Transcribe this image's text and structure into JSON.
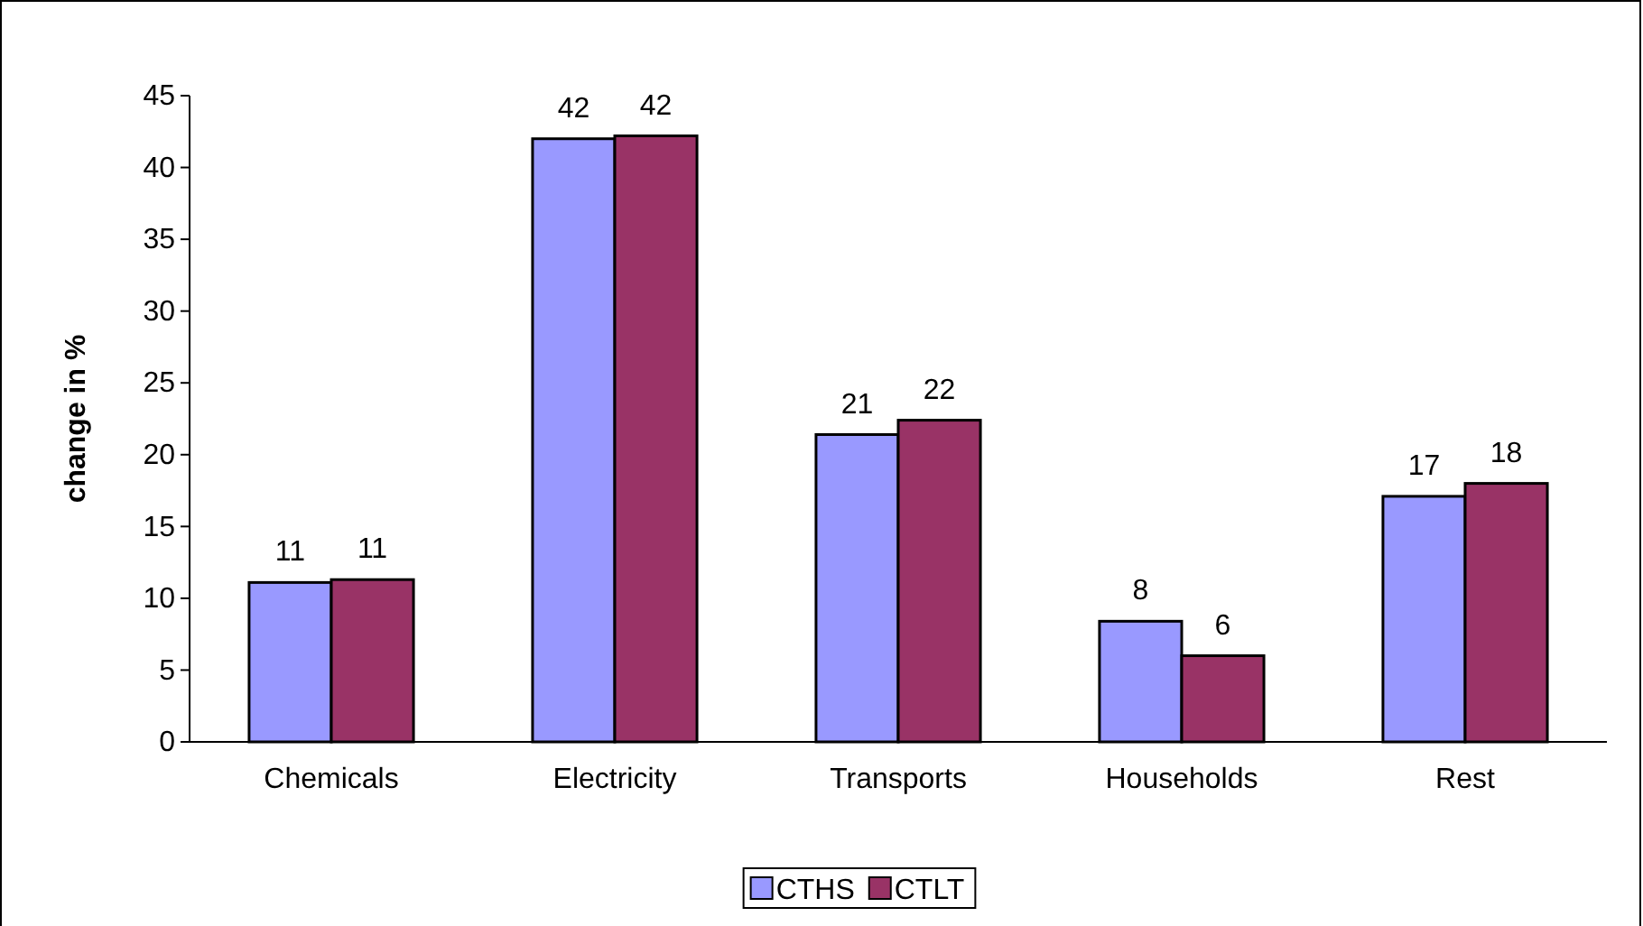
{
  "chart_data": {
    "type": "bar",
    "ylabel": "change in %",
    "categories": [
      "Chemicals",
      "Electricity",
      "Transports",
      "Households",
      "Rest"
    ],
    "series": [
      {
        "name": "CTHS",
        "color": "#9999ff",
        "values": [
          11.1,
          42.0,
          21.4,
          8.4,
          17.1
        ],
        "value_labels": [
          "11",
          "42",
          "21",
          "8",
          "17"
        ]
      },
      {
        "name": "CTLT",
        "color": "#993366",
        "values": [
          11.3,
          42.2,
          22.4,
          6.0,
          18.0
        ],
        "value_labels": [
          "11",
          "42",
          "22",
          "6",
          "18"
        ]
      }
    ],
    "ylim": [
      0,
      45
    ],
    "yticks": [
      0,
      5,
      10,
      15,
      20,
      25,
      30,
      35,
      40,
      45
    ],
    "grid": false,
    "legend": "bottom"
  }
}
